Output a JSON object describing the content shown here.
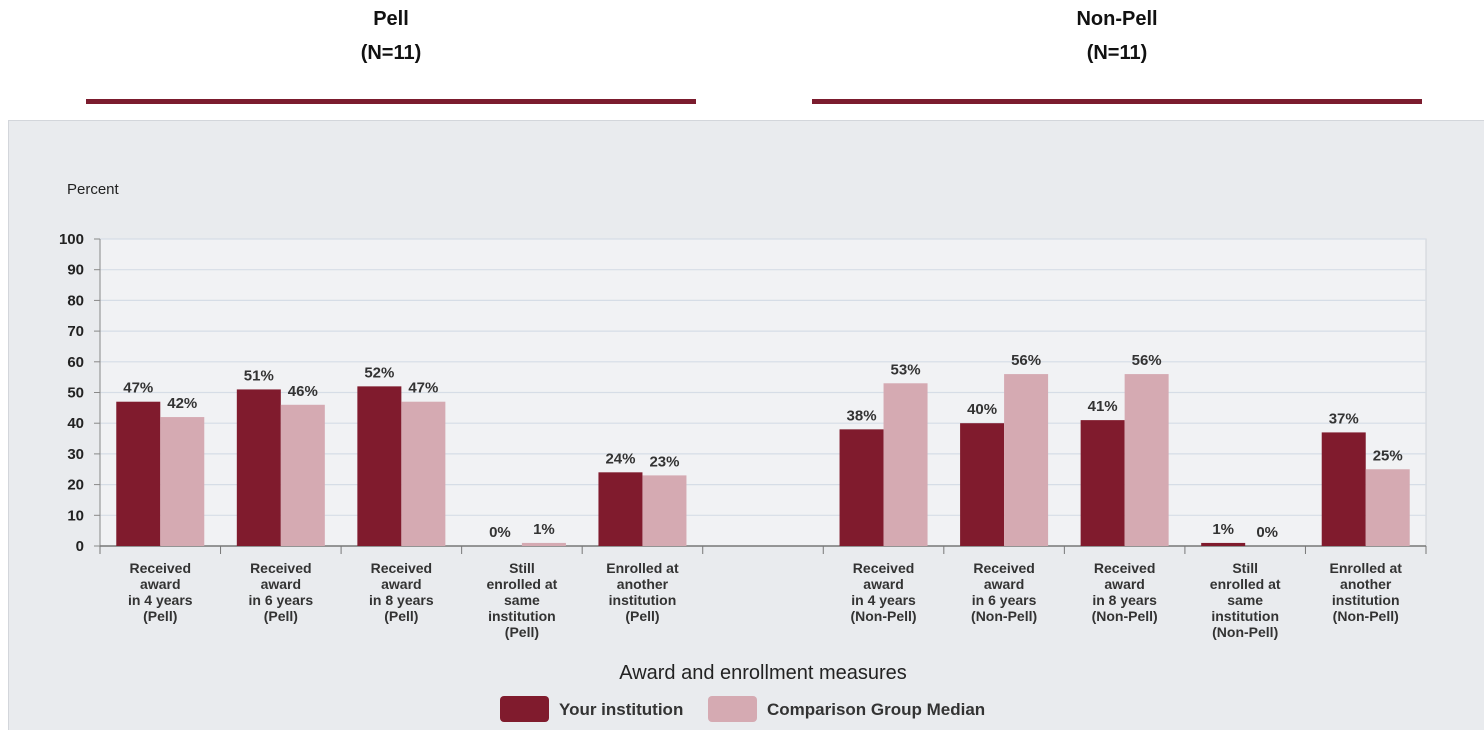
{
  "groups": [
    {
      "name": "Pell",
      "n": "(N=11)"
    },
    {
      "name": "Non-Pell",
      "n": "(N=11)"
    }
  ],
  "colors": {
    "your_institution": "#801b2d",
    "comparison": "#d5aab2",
    "group_line": "#7b1c2e",
    "panel_bg": "#e9ebee",
    "plot_bg": "#f1f2f4"
  },
  "chart_data": {
    "type": "bar",
    "title": "",
    "ylabel": "Percent",
    "xlabel": "Award and enrollment measures",
    "ylim": [
      0,
      100
    ],
    "yticks": [
      0,
      10,
      20,
      30,
      40,
      50,
      60,
      70,
      80,
      90,
      100
    ],
    "grid": true,
    "legend_position": "bottom-center",
    "categories": [
      [
        "Received",
        "award",
        "in 4 years",
        "(Pell)"
      ],
      [
        "Received",
        "award",
        "in 6 years",
        "(Pell)"
      ],
      [
        "Received",
        "award",
        "in 8 years",
        "(Pell)"
      ],
      [
        "Still",
        "enrolled at",
        "same",
        "institution",
        "(Pell)"
      ],
      [
        "Enrolled at",
        "another",
        "institution",
        "(Pell)"
      ],
      [],
      [
        "Received",
        "award",
        "in 4 years",
        "(Non-Pell)"
      ],
      [
        "Received",
        "award",
        "in 6 years",
        "(Non-Pell)"
      ],
      [
        "Received",
        "award",
        "in 8 years",
        "(Non-Pell)"
      ],
      [
        "Still",
        "enrolled at",
        "same",
        "institution",
        "(Non-Pell)"
      ],
      [
        "Enrolled at",
        "another",
        "institution",
        "(Non-Pell)"
      ]
    ],
    "series": [
      {
        "name": "Your institution",
        "values": [
          47,
          51,
          52,
          0,
          24,
          null,
          38,
          40,
          41,
          1,
          37
        ],
        "labels": [
          "47%",
          "51%",
          "52%",
          "0%",
          "24%",
          "",
          "38%",
          "40%",
          "41%",
          "1%",
          "37%"
        ]
      },
      {
        "name": "Comparison Group Median",
        "values": [
          42,
          46,
          47,
          1,
          23,
          null,
          53,
          56,
          56,
          0,
          25
        ],
        "labels": [
          "42%",
          "46%",
          "47%",
          "1%",
          "23%",
          "",
          "53%",
          "56%",
          "56%",
          "0%",
          "25%"
        ]
      }
    ]
  }
}
